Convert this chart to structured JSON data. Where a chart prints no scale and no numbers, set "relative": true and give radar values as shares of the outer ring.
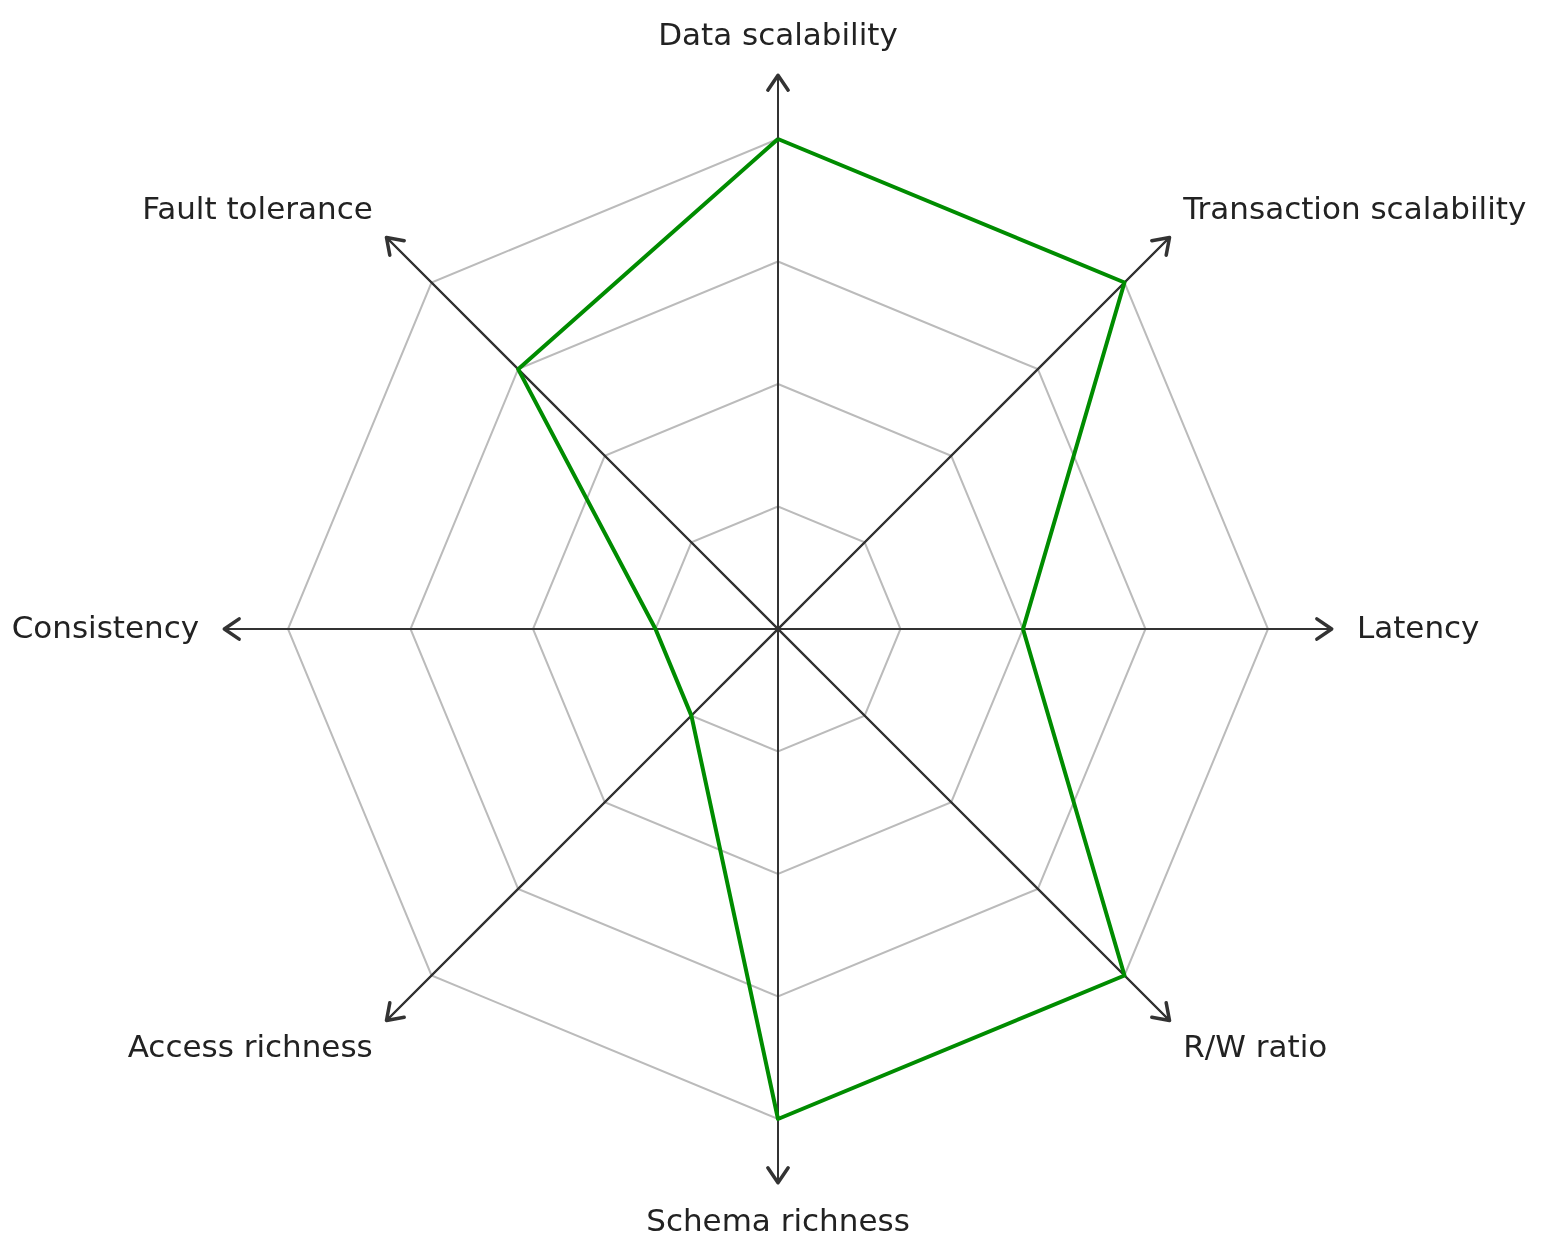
{
  "chart_data": {
    "type": "radar",
    "relative": true,
    "grid": true,
    "categories": [
      "Data scalability",
      "Transaction scalability",
      "Latency",
      "R/W ratio",
      "Schema richness",
      "Access richness",
      "Consistency",
      "Fault tolerance"
    ],
    "series": [
      {
        "color": "#008c00",
        "values": [
          1,
          1,
          0.5,
          1,
          1,
          0.25,
          0.25,
          0.75
        ]
      }
    ]
  }
}
